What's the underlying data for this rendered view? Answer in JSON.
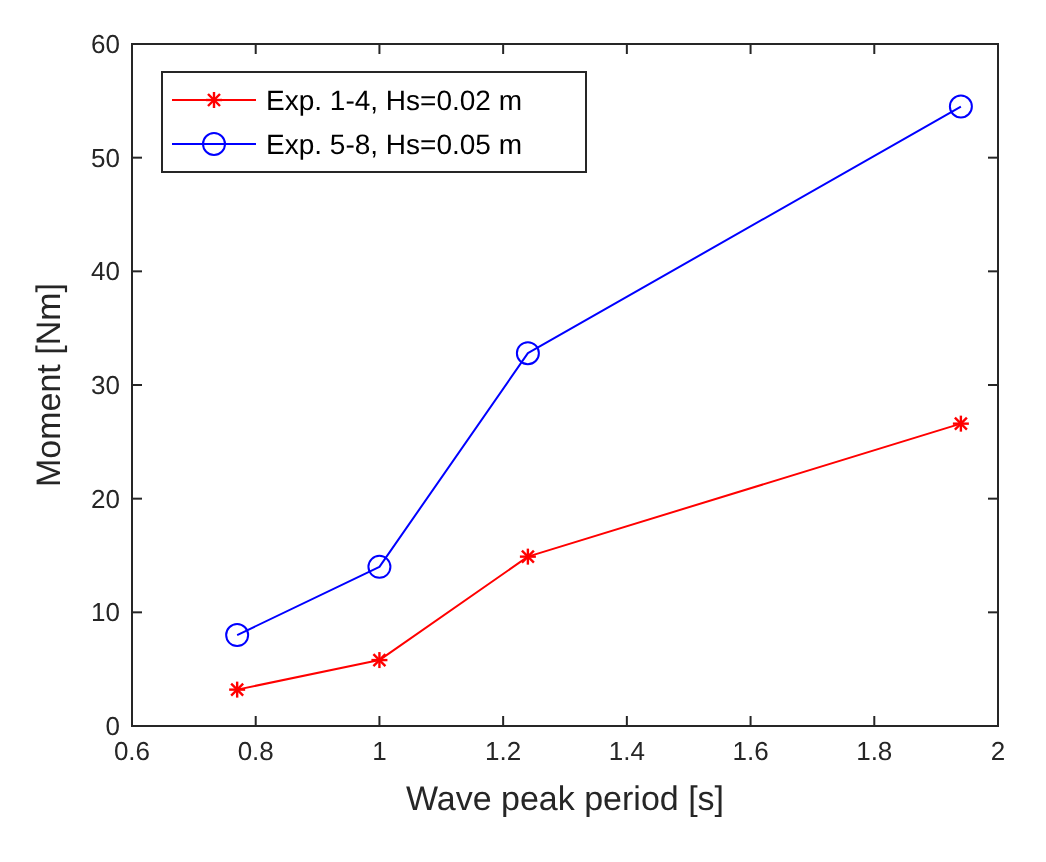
{
  "chart_data": {
    "type": "line",
    "xlabel": "Wave peak period [s]",
    "ylabel": "Moment [Nm]",
    "x": [
      0.77,
      1.0,
      1.24,
      1.94
    ],
    "series": [
      {
        "name": "Exp. 1-4, Hs=0.02 m",
        "color": "#ff0000",
        "marker": "cross",
        "values": [
          3.2,
          5.8,
          14.9,
          26.6
        ]
      },
      {
        "name": "Exp. 5-8, Hs=0.05 m",
        "color": "#0000ff",
        "marker": "circle",
        "values": [
          8.0,
          14.0,
          32.8,
          54.5
        ]
      }
    ],
    "xlim": [
      0.6,
      2
    ],
    "xticks": [
      0.6,
      0.8,
      1,
      1.2,
      1.4,
      1.6,
      1.8,
      2
    ],
    "ylim": [
      0,
      60
    ],
    "yticks": [
      0,
      10,
      20,
      30,
      40,
      50,
      60
    ],
    "grid": false,
    "legend": "top left",
    "line_style": "solid"
  }
}
